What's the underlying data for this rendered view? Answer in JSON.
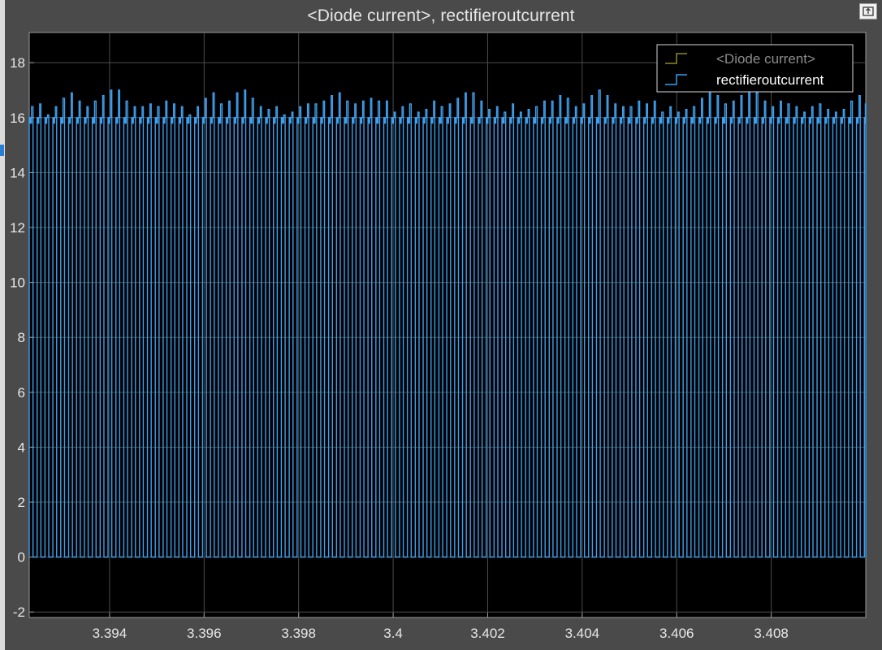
{
  "window": {
    "background": "#4a4a4a",
    "plot_background": "#000000",
    "grid_color": "#4d4d4d",
    "axis_color": "#9a9a9a",
    "undock_icon": "undock-icon"
  },
  "chart_data": {
    "type": "line",
    "title": "<Diode current>, rectifieroutcurrent",
    "xlabel": "",
    "ylabel": "",
    "xlim": [
      3.3923,
      3.41
    ],
    "ylim": [
      -2.2,
      19.1
    ],
    "grid": true,
    "legend_position": "top-right",
    "x_ticks": [
      3.394,
      3.396,
      3.398,
      3.4,
      3.402,
      3.404,
      3.406,
      3.408
    ],
    "x_tick_labels": [
      "3.394",
      "3.396",
      "3.398",
      "3.4",
      "3.402",
      "3.404",
      "3.406",
      "3.408"
    ],
    "y_ticks": [
      -2,
      0,
      2,
      4,
      6,
      8,
      10,
      12,
      14,
      16,
      18
    ],
    "y_tick_labels": [
      "-2",
      "0",
      "2",
      "4",
      "6",
      "8",
      "10",
      "12",
      "14",
      "16",
      "18"
    ],
    "series": [
      {
        "name": "<Diode current>",
        "color": "#8a8a2e",
        "text_color": "#8c8c8c",
        "style": "step",
        "values": []
      },
      {
        "name": "rectifieroutcurrent",
        "color": "#3ea0ee",
        "text_color": "#ffffff",
        "style": "step",
        "pulse_period": 0.0001667,
        "pulse_start": 3.3923,
        "duty_high": 0.48,
        "low_value": 0,
        "peak_values": [
          16.4,
          16.5,
          16.1,
          16.4,
          16.7,
          16.9,
          16.6,
          16.4,
          16.6,
          16.8,
          17.0,
          17.0,
          16.6,
          16.4,
          16.4,
          16.5,
          16.4,
          16.6,
          16.5,
          16.4,
          16.1,
          16.4,
          16.7,
          16.9,
          16.5,
          16.6,
          16.9,
          17.0,
          16.7,
          16.4,
          16.3,
          16.4,
          16.1,
          16.2,
          16.4,
          16.5,
          16.5,
          16.6,
          16.8,
          16.9,
          16.6,
          16.5,
          16.6,
          16.7,
          16.6,
          16.6,
          16.2,
          16.4,
          16.5,
          16.2,
          16.3,
          16.6,
          16.4,
          16.5,
          16.7,
          16.9,
          16.9,
          16.6,
          16.3,
          16.4,
          16.2,
          16.5,
          16.2,
          16.3,
          16.4,
          16.6,
          16.6,
          16.8,
          16.7,
          16.4,
          16.5,
          16.8,
          17.0,
          16.8,
          16.5,
          16.4,
          16.4,
          16.6,
          16.5,
          16.6,
          16.2,
          16.4,
          16.2,
          16.3,
          16.4,
          16.7,
          16.9,
          16.8,
          16.5,
          16.6,
          16.8,
          17.0,
          16.9,
          16.6,
          16.4,
          16.6,
          16.5,
          16.4,
          16.2,
          16.4,
          16.5,
          16.3,
          16.2,
          16.3,
          16.6,
          16.8,
          16.5
        ],
        "step_values": [
          16.0,
          15.8,
          16.0,
          16.2
        ]
      }
    ]
  }
}
